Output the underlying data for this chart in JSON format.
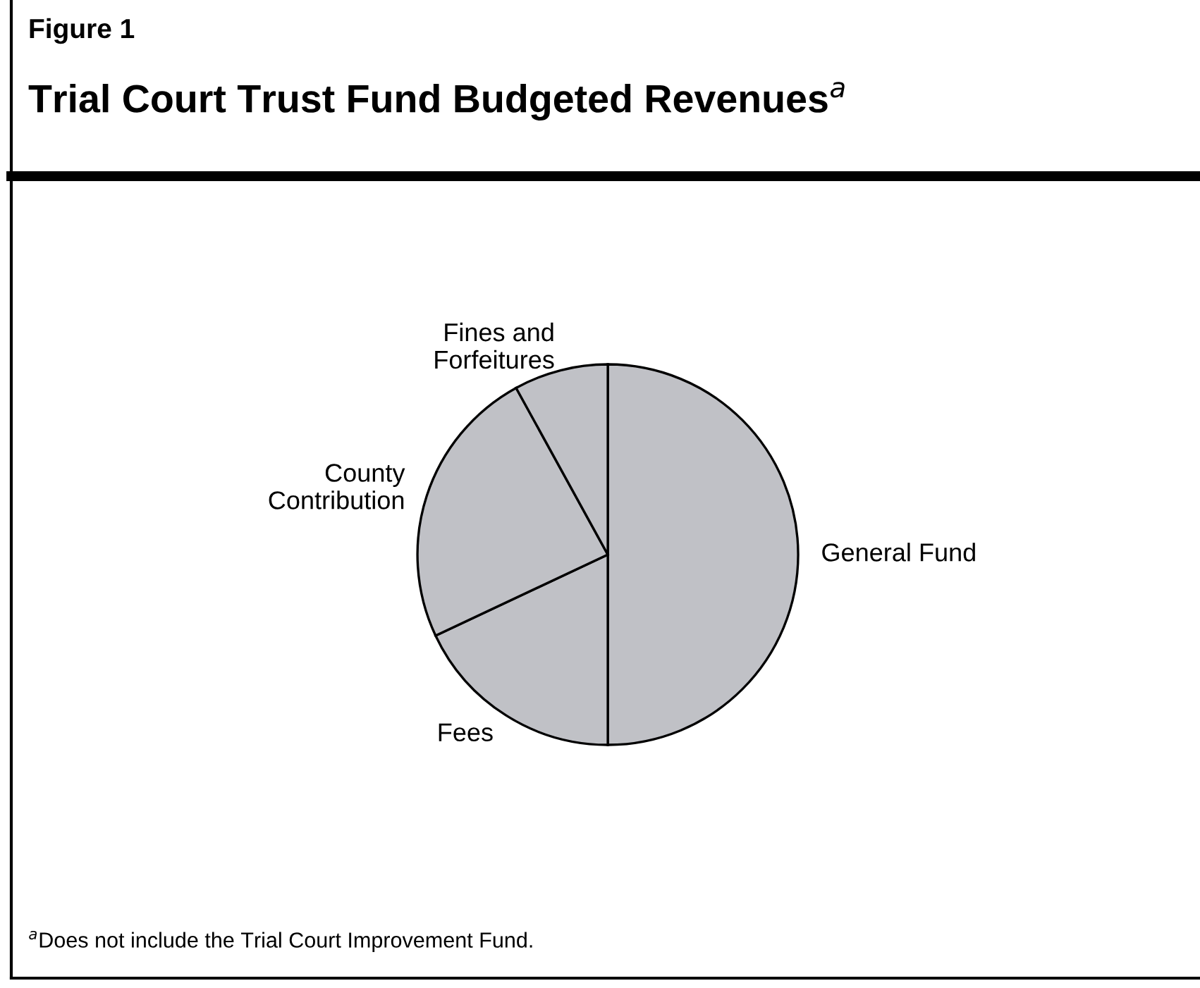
{
  "chart_data": {
    "type": "pie",
    "subtitle": "Figure 1",
    "title": "Trial Court Trust Fund Budgeted Revenues$^{a}$",
    "categories": [
      "General Fund",
      "Fees",
      "County\nContribution",
      "Fines and\nForfeitures"
    ],
    "values": [
      50,
      18,
      24,
      8
    ],
    "colors": [
      "#c0c1c6",
      "#c0c1c6",
      "#c0c1c6",
      "#c0c1c6"
    ],
    "annotations": [
      "$^{a}$Does not include the Trial Court Improvement Fund."
    ]
  }
}
